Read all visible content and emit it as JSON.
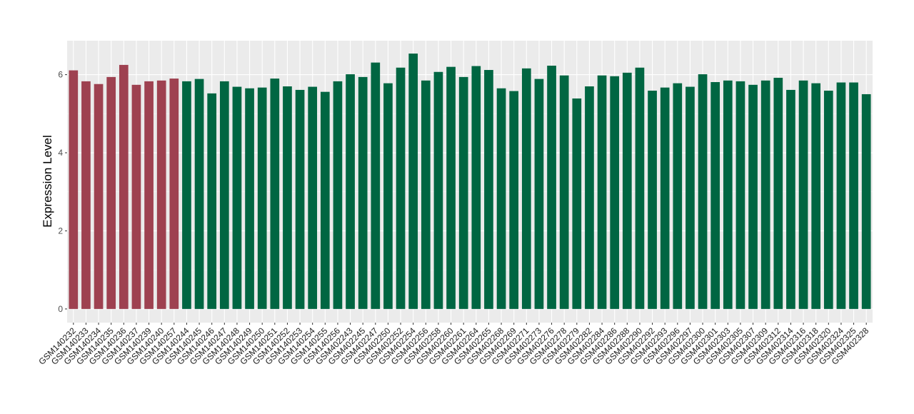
{
  "chart_data": {
    "type": "bar",
    "title": "",
    "xlabel": "",
    "ylabel": "Expression Level",
    "ylim": [
      -0.35,
      6.87
    ],
    "yticks": [
      0,
      2,
      4,
      6
    ],
    "grid": true,
    "legend": "none",
    "colors": {
      "group1": "#9E4150",
      "group2": "#006642",
      "panel": "#EBEBEB",
      "grid": "#FFFFFF"
    },
    "categories": [
      "GSM140232",
      "GSM140233",
      "GSM140234",
      "GSM140235",
      "GSM140236",
      "GSM140237",
      "GSM140239",
      "GSM140240",
      "GSM140257",
      "GSM140244",
      "GSM140245",
      "GSM140246",
      "GSM140247",
      "GSM140248",
      "GSM140249",
      "GSM140250",
      "GSM140251",
      "GSM140252",
      "GSM140253",
      "GSM140254",
      "GSM140255",
      "GSM140256",
      "GSM402243",
      "GSM402245",
      "GSM402247",
      "GSM402250",
      "GSM402252",
      "GSM402254",
      "GSM402256",
      "GSM402258",
      "GSM402260",
      "GSM402261",
      "GSM402264",
      "GSM402265",
      "GSM402268",
      "GSM402269",
      "GSM402271",
      "GSM402273",
      "GSM402276",
      "GSM402278",
      "GSM402279",
      "GSM402282",
      "GSM402284",
      "GSM402286",
      "GSM402288",
      "GSM402290",
      "GSM402292",
      "GSM402293",
      "GSM402296",
      "GSM402297",
      "GSM402300",
      "GSM402301",
      "GSM402303",
      "GSM402305",
      "GSM402307",
      "GSM402309",
      "GSM402312",
      "GSM402314",
      "GSM402316",
      "GSM402318",
      "GSM402320",
      "GSM402324",
      "GSM402325",
      "GSM402328"
    ],
    "values": [
      6.11,
      5.83,
      5.76,
      5.94,
      6.25,
      5.74,
      5.83,
      5.85,
      5.9,
      5.83,
      5.89,
      5.52,
      5.83,
      5.69,
      5.65,
      5.67,
      5.9,
      5.7,
      5.61,
      5.69,
      5.56,
      5.83,
      6.01,
      5.94,
      6.31,
      5.78,
      6.18,
      6.54,
      5.85,
      6.07,
      6.2,
      5.94,
      6.22,
      6.12,
      5.65,
      5.58,
      6.16,
      5.89,
      6.23,
      5.98,
      5.39,
      5.7,
      5.98,
      5.96,
      6.05,
      6.18,
      5.59,
      5.67,
      5.78,
      5.69,
      6.01,
      5.81,
      5.85,
      5.83,
      5.74,
      5.85,
      5.92,
      5.61,
      5.85,
      5.78,
      5.59,
      5.8,
      5.8,
      5.5
    ],
    "groups": [
      1,
      1,
      1,
      1,
      1,
      1,
      1,
      1,
      1,
      2,
      2,
      2,
      2,
      2,
      2,
      2,
      2,
      2,
      2,
      2,
      2,
      2,
      2,
      2,
      2,
      2,
      2,
      2,
      2,
      2,
      2,
      2,
      2,
      2,
      2,
      2,
      2,
      2,
      2,
      2,
      2,
      2,
      2,
      2,
      2,
      2,
      2,
      2,
      2,
      2,
      2,
      2,
      2,
      2,
      2,
      2,
      2,
      2,
      2,
      2,
      2,
      2,
      2,
      2
    ]
  }
}
